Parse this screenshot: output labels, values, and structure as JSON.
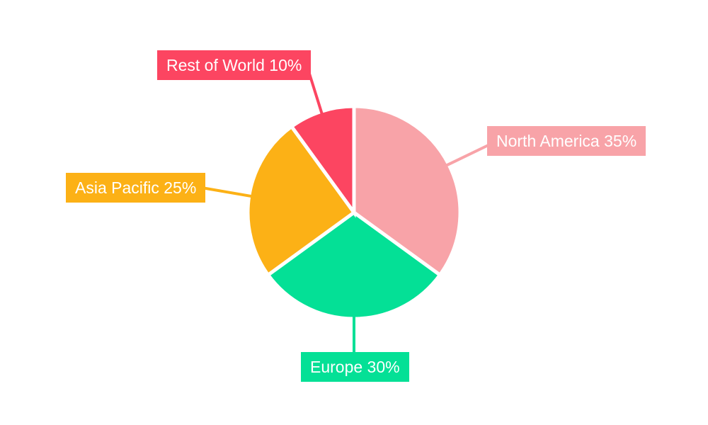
{
  "figure": {
    "background": "#FFFFFF"
  },
  "chart_data": {
    "type": "pie",
    "title": "",
    "categories": [
      "North America",
      "Europe",
      "Asia Pacific",
      "Rest of World"
    ],
    "values": [
      35,
      30,
      25,
      10
    ],
    "unit": "%",
    "total": 100,
    "start_angle_deg": 0,
    "direction": "clockwise",
    "legend_position": "none",
    "slice_border_color": "#FFFFFF",
    "label_text_color": "#FFFFFF",
    "label_style": "callout boxes filled with slice color, white text, leader lines to slices",
    "slices": [
      {
        "label": "North America",
        "value": 35,
        "percent_text": "35%",
        "callout_text": "North America 35%",
        "color": "#F8A3A8"
      },
      {
        "label": "Europe",
        "value": 30,
        "percent_text": "30%",
        "callout_text": "Europe 30%",
        "color": "#04E096"
      },
      {
        "label": "Asia Pacific",
        "value": 25,
        "percent_text": "25%",
        "callout_text": "Asia Pacific 25%",
        "color": "#FCB116"
      },
      {
        "label": "Rest of World",
        "value": 10,
        "percent_text": "10%",
        "callout_text": "Rest of World 10%",
        "color": "#FC4561"
      }
    ]
  }
}
